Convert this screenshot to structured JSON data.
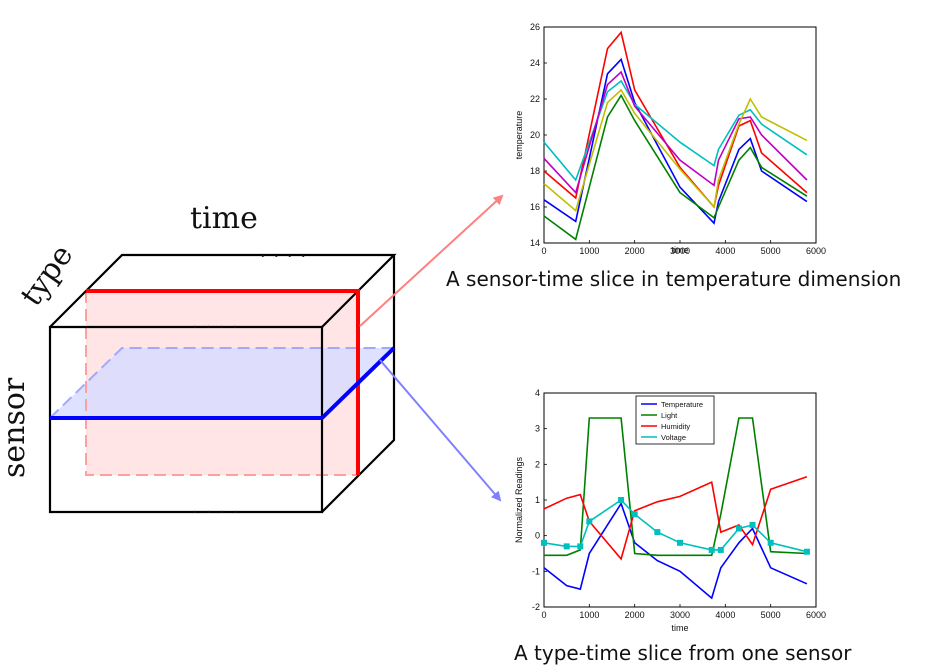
{
  "cube": {
    "label_time": "time",
    "label_type": "type",
    "label_sensor": "sensor",
    "dots": "· · · ·",
    "colors": {
      "time_type_plane": "#ff0000",
      "sensor_time_plane": "#0000ff",
      "edge": "#000000"
    }
  },
  "captions": {
    "top": "A sensor-time slice in temperature dimension",
    "bottom": "A type-time slice from one sensor"
  },
  "chart_data": [
    {
      "type": "line",
      "title": "",
      "xlabel": "time",
      "ylabel": "temperature",
      "xlim": [
        0,
        6000
      ],
      "ylim": [
        14,
        26
      ],
      "xticks": [
        0,
        1000,
        2000,
        3000,
        4000,
        5000,
        6000
      ],
      "yticks": [
        14,
        16,
        18,
        20,
        22,
        24,
        26
      ],
      "x": [
        0,
        700,
        1400,
        1700,
        2000,
        3000,
        3750,
        3850,
        4300,
        4550,
        4800,
        5800
      ],
      "series": [
        {
          "color": "#ff0000",
          "values": [
            18.0,
            16.5,
            24.8,
            25.7,
            22.5,
            18.2,
            16.0,
            17.2,
            20.5,
            20.8,
            19.0,
            16.8
          ]
        },
        {
          "color": "#0000ff",
          "values": [
            16.4,
            15.2,
            23.4,
            24.2,
            21.8,
            17.1,
            15.1,
            16.3,
            19.2,
            19.8,
            18.0,
            16.3
          ]
        },
        {
          "color": "#008000",
          "values": [
            15.5,
            14.2,
            21.0,
            22.2,
            20.8,
            16.8,
            15.4,
            16.0,
            18.6,
            19.3,
            18.2,
            16.6
          ]
        },
        {
          "color": "#00bfbf",
          "values": [
            19.6,
            17.5,
            22.4,
            23.0,
            21.7,
            19.6,
            18.3,
            19.2,
            21.1,
            21.4,
            20.6,
            18.9
          ]
        },
        {
          "color": "#bf00bf",
          "values": [
            18.7,
            16.8,
            22.8,
            23.5,
            21.6,
            18.6,
            17.2,
            18.6,
            20.9,
            21.0,
            20.0,
            17.5
          ]
        },
        {
          "color": "#bfbf00",
          "values": [
            17.3,
            15.8,
            21.8,
            22.5,
            21.2,
            18.1,
            16.0,
            17.5,
            20.6,
            22.0,
            21.0,
            19.7
          ]
        }
      ]
    },
    {
      "type": "line",
      "title": "",
      "xlabel": "time",
      "ylabel": "Normalized Readings",
      "xlim": [
        0,
        6000
      ],
      "ylim": [
        -2,
        4
      ],
      "xticks": [
        0,
        1000,
        2000,
        3000,
        4000,
        5000,
        6000
      ],
      "yticks": [
        -2,
        -1,
        0,
        1,
        2,
        3,
        4
      ],
      "x": [
        0,
        500,
        800,
        1000,
        1700,
        2000,
        2500,
        3000,
        3700,
        3900,
        4300,
        4600,
        5000,
        5800
      ],
      "series": [
        {
          "name": "Temperature",
          "color": "#0000ff",
          "values": [
            -0.9,
            -1.4,
            -1.5,
            -0.5,
            0.9,
            -0.2,
            -0.7,
            -1.0,
            -1.75,
            -0.9,
            -0.2,
            0.2,
            -0.9,
            -1.35
          ]
        },
        {
          "name": "Light",
          "color": "#008000",
          "values": [
            -0.55,
            -0.55,
            -0.4,
            3.3,
            3.3,
            -0.5,
            -0.55,
            -0.55,
            -0.55,
            0.6,
            3.3,
            3.3,
            -0.45,
            -0.5
          ]
        },
        {
          "name": "Humidity",
          "color": "#ff0000",
          "values": [
            0.75,
            1.05,
            1.15,
            0.4,
            -0.65,
            0.7,
            0.95,
            1.1,
            1.5,
            0.1,
            0.3,
            -0.25,
            1.3,
            1.65
          ]
        },
        {
          "name": "Voltage",
          "color": "#00bfbf",
          "values": [
            -0.2,
            -0.3,
            -0.3,
            0.4,
            1.0,
            0.6,
            0.1,
            -0.2,
            -0.4,
            -0.4,
            0.2,
            0.3,
            -0.2,
            -0.45
          ]
        }
      ]
    }
  ]
}
